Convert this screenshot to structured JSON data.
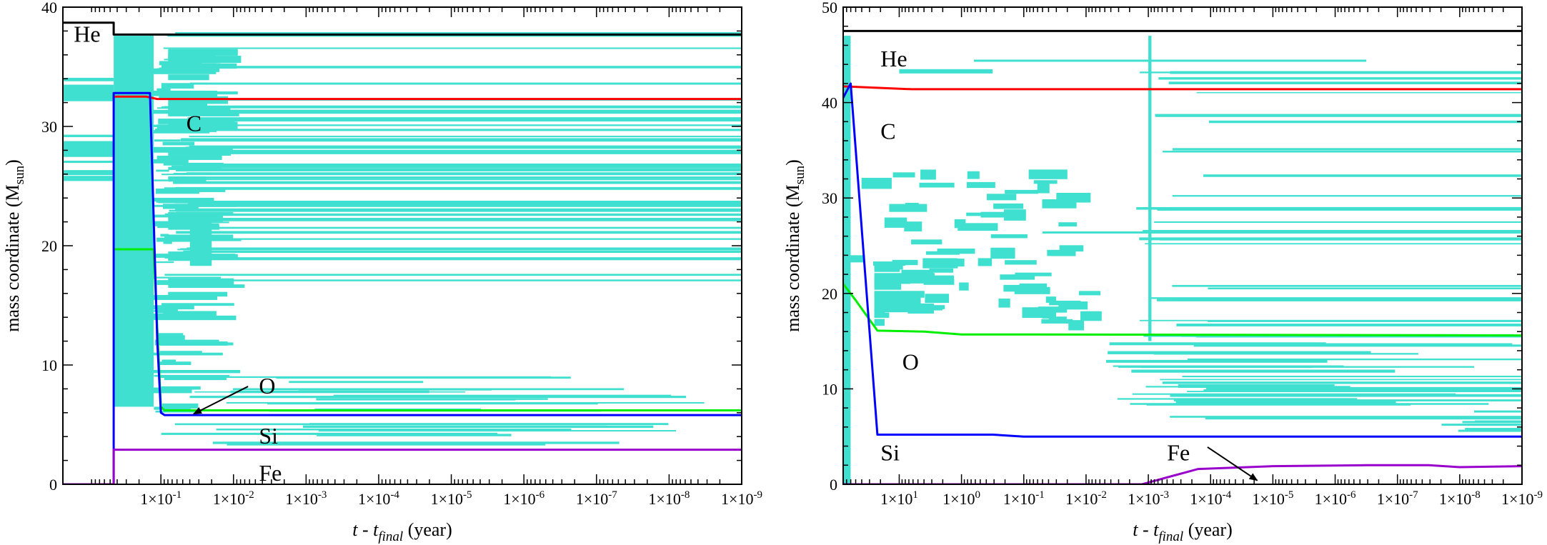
{
  "chart_data": [
    {
      "type": "line",
      "panel": "left",
      "xlabel": {
        "main": "t - t",
        "sub": "final",
        "unit": " (year)"
      },
      "ylabel": {
        "main": "mass coordinate (M",
        "sub": "sun",
        "close": ")"
      },
      "ylim": [
        0,
        40
      ],
      "yticks": [
        "0",
        "10",
        "20",
        "30",
        "40"
      ],
      "xticks": [
        "1×10-1",
        "1×10-2",
        "1×10-3",
        "1×10-4",
        "1×10-5",
        "1×10-6",
        "1×10-7",
        "1×10-8",
        "1×10-9"
      ],
      "xtick_positions": [
        -1,
        -2,
        -3,
        -4,
        -5,
        -6,
        -7,
        -8,
        -9
      ],
      "xlim_log": [
        0.35,
        -9.0
      ],
      "boundary_series": [
        {
          "name": "He",
          "color": "#000000",
          "points": [
            [
              0.35,
              38.7
            ],
            [
              -0.35,
              38.7
            ],
            [
              -0.35,
              37.7
            ],
            [
              -9.0,
              37.7
            ]
          ]
        },
        {
          "name": "C",
          "color": "#ff0000",
          "points": [
            [
              -0.35,
              32.3
            ],
            [
              -0.35,
              32.5
            ],
            [
              -0.8,
              32.5
            ],
            [
              -0.95,
              32.3
            ],
            [
              -9.0,
              32.3
            ]
          ]
        },
        {
          "name": "O",
          "color": "#00ee00",
          "points": [
            [
              -0.35,
              19.7
            ],
            [
              -0.9,
              19.7
            ],
            [
              -1.0,
              6.5
            ],
            [
              -1.05,
              6.2
            ],
            [
              -9.0,
              6.2
            ]
          ]
        },
        {
          "name": "Si",
          "color": "#0000ff",
          "points": [
            [
              -0.35,
              0
            ],
            [
              -0.35,
              32.8
            ],
            [
              -0.85,
              32.8
            ],
            [
              -0.95,
              12.0
            ],
            [
              -1.0,
              6.0
            ],
            [
              -1.05,
              5.8
            ],
            [
              -9.0,
              5.8
            ]
          ]
        },
        {
          "name": "Fe",
          "color": "#9900cc",
          "points": [
            [
              0.35,
              0
            ],
            [
              -0.35,
              0
            ],
            [
              -0.35,
              2.9
            ],
            [
              -9.0,
              2.9
            ]
          ]
        }
      ],
      "labels": [
        {
          "text": "He",
          "x": 0.2,
          "y": 37.1
        },
        {
          "text": "C",
          "x": -1.35,
          "y": 29.6
        },
        {
          "text": "O",
          "x": -2.35,
          "y": 7.6
        },
        {
          "text": "Si",
          "x": -2.35,
          "y": 3.4
        },
        {
          "text": "Fe",
          "x": -2.35,
          "y": 0.3
        }
      ],
      "arrows": [
        {
          "from": [
            -2.2,
            8.2
          ],
          "to": [
            -1.45,
            5.9
          ]
        }
      ]
    },
    {
      "type": "line",
      "panel": "right",
      "xlabel": {
        "main": "t - t",
        "sub": "final",
        "unit": " (year)"
      },
      "ylabel": {
        "main": "mass coordinate (M",
        "sub": "sun",
        "close": ")"
      },
      "ylim": [
        0,
        50
      ],
      "yticks": [
        "0",
        "10",
        "20",
        "30",
        "40",
        "50"
      ],
      "xticks": [
        "1×101",
        "1×100",
        "1×10-1",
        "1×10-2",
        "1×10-3",
        "1×10-4",
        "1×10-5",
        "1×10-6",
        "1×10-7",
        "1×10-8",
        "1×10-9"
      ],
      "xtick_positions": [
        1,
        0,
        -1,
        -2,
        -3,
        -4,
        -5,
        -6,
        -7,
        -8,
        -9
      ],
      "xlim_log": [
        1.9,
        -9.0
      ],
      "boundary_series": [
        {
          "name": "He",
          "color": "#000000",
          "points": [
            [
              1.9,
              47.5
            ],
            [
              -9.0,
              47.5
            ]
          ]
        },
        {
          "name": "C",
          "color": "#ff0000",
          "points": [
            [
              1.9,
              41.7
            ],
            [
              0.8,
              41.4
            ],
            [
              -9.0,
              41.4
            ]
          ]
        },
        {
          "name": "O",
          "color": "#00ee00",
          "points": [
            [
              1.9,
              21.0
            ],
            [
              1.7,
              19.3
            ],
            [
              1.35,
              16.1
            ],
            [
              0.6,
              16.0
            ],
            [
              0.0,
              15.7
            ],
            [
              -1.0,
              15.7
            ],
            [
              -9.0,
              15.6
            ]
          ]
        },
        {
          "name": "Si",
          "color": "#0000ff",
          "points": [
            [
              1.9,
              40.5
            ],
            [
              1.78,
              42.0
            ],
            [
              1.35,
              5.2
            ],
            [
              -0.5,
              5.2
            ],
            [
              -1.0,
              5.0
            ],
            [
              -9.0,
              5.0
            ]
          ]
        },
        {
          "name": "Fe",
          "color": "#9900cc",
          "points": [
            [
              1.9,
              0
            ],
            [
              -2.9,
              0
            ],
            [
              -3.4,
              0.9
            ],
            [
              -3.8,
              1.6
            ],
            [
              -5.0,
              1.9
            ],
            [
              -6.5,
              2.0
            ],
            [
              -7.5,
              2.0
            ],
            [
              -8.0,
              1.8
            ],
            [
              -9.0,
              1.9
            ]
          ]
        }
      ],
      "labels": [
        {
          "text": "He",
          "x": 1.3,
          "y": 43.8
        },
        {
          "text": "C",
          "x": 1.3,
          "y": 36.2
        },
        {
          "text": "O",
          "x": 0.95,
          "y": 12.0
        },
        {
          "text": "Si",
          "x": 1.3,
          "y": 2.5
        },
        {
          "text": "Fe",
          "x": -3.3,
          "y": 2.5
        }
      ],
      "arrows": [
        {
          "from": [
            -3.95,
            3.9
          ],
          "to": [
            -4.75,
            0.4
          ]
        }
      ]
    }
  ]
}
